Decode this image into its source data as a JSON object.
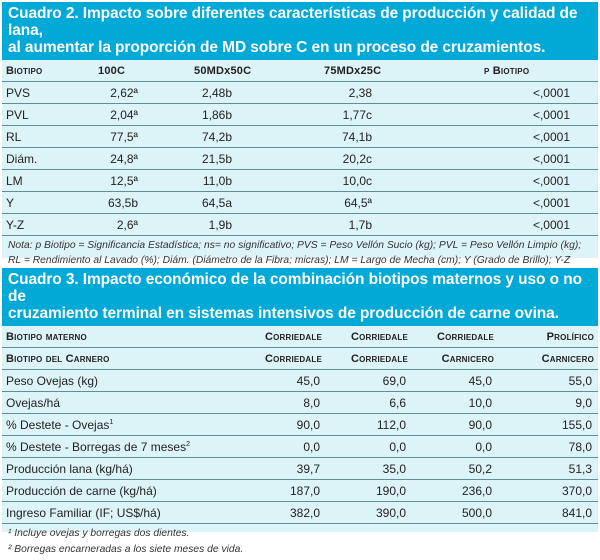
{
  "table2": {
    "title_line1": "Cuadro 2. Impacto sobre diferentes características de producción y calidad de lana,",
    "title_line2": "al aumentar la proporción de MD sobre C en un proceso de cruzamientos.",
    "headers": [
      "Biotipo",
      "100C",
      "50MDx50C",
      "75MDx25C",
      "p Biotipo"
    ],
    "rows": [
      [
        "PVS",
        "2,62ª",
        "2,48b",
        "2,38",
        "<,0001"
      ],
      [
        "PVL",
        "2,04ª",
        "1,86b",
        "1,77c",
        "<,0001"
      ],
      [
        "RL",
        "77,5ª",
        "74,2b",
        "74,1b",
        "<,0001"
      ],
      [
        "Diám.",
        "24,8ª",
        "21,5b",
        "20,2c",
        "<,0001"
      ],
      [
        "LM",
        "12,5ª",
        "11,0b",
        "10,0c",
        "<,0001"
      ],
      [
        "Y",
        "63,5b",
        "64,5a",
        "64,5ª",
        "<,0001"
      ],
      [
        "Y-Z",
        "2,6ª",
        "1,9b",
        "1,7b",
        "<,0001"
      ]
    ],
    "note": "Nota: p Biotipo = Significancia Estadística; ns= no significativo; PVS = Peso Vellón Sucio (kg); PVL = Peso Vellón Limpio (kg); RL = Rendimiento al Lavado (%); Diám. (Diámetro de la Fibra; micras); LM = Largo de Mecha (cm); Y (Grado de Brillo); Y-Z (Grado de Amarillamiento)."
  },
  "table3": {
    "title_line1": "Cuadro 3. Impacto económico de la combinación biotipos maternos y uso o no de",
    "title_line2": "cruzamiento terminal en sistemas intensivos de producción de carne ovina.",
    "header_row1": [
      "Biotipo materno",
      "Corriedale",
      "Corriedale",
      "Corriedale",
      "Prolífico"
    ],
    "header_row2": [
      "Biotipo del Carnero",
      "Corriedale",
      "Corriedale",
      "Carnicero",
      "Carnicero"
    ],
    "rows": [
      [
        "Peso Ovejas (kg)",
        "",
        "45,0",
        "69,0",
        "45,0",
        "55,0"
      ],
      [
        "Ovejas/há",
        "",
        "8,0",
        "6,6",
        "10,0",
        "9,0"
      ],
      [
        "% Destete - Ovejas",
        "1",
        "90,0",
        "112,0",
        "90,0",
        "155,0"
      ],
      [
        "% Destete - Borregas de 7 meses",
        "2",
        "0,0",
        "0,0",
        "0,0",
        "78,0"
      ],
      [
        "Producción lana (kg/há)",
        "",
        "39,7",
        "35,0",
        "50,2",
        "51,3"
      ],
      [
        "Producción de carne (kg/há)",
        "",
        "187,0",
        "190,0",
        "236,0",
        "370,0"
      ],
      [
        "Ingreso Familiar (IF; US$/há)",
        "",
        "382,0",
        "390,0",
        "500,0",
        "841,0"
      ]
    ],
    "footnote1": "¹ Incluye ovejas y borregas dos dientes.",
    "footnote2": "² Borregas encarneradas a los siete meses de vida."
  }
}
